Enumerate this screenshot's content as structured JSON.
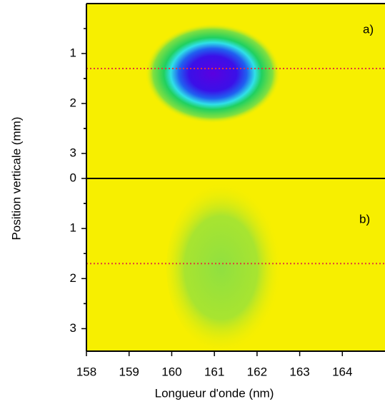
{
  "chart_data": [
    {
      "type": "image",
      "label": "a)",
      "ylabel": "Position verticale (mm)",
      "xlim": [
        158,
        165
      ],
      "ylim": [
        0,
        3.5
      ],
      "yticks": [
        1,
        2,
        3
      ],
      "hline": 1.3,
      "hline_color": "#e03a3a",
      "background": "#f7ef00"
    },
    {
      "type": "image",
      "label": "b)",
      "xlabel": "Longueur d'onde (nm)",
      "xlim": [
        158,
        165
      ],
      "xticks": [
        158,
        159,
        160,
        161,
        162,
        163,
        164
      ],
      "ylim": [
        0,
        3.45
      ],
      "yticks": [
        0,
        1,
        2,
        3
      ],
      "hline": 1.7,
      "hline_color": "#e03a3a",
      "background": "#f7ef00"
    }
  ]
}
